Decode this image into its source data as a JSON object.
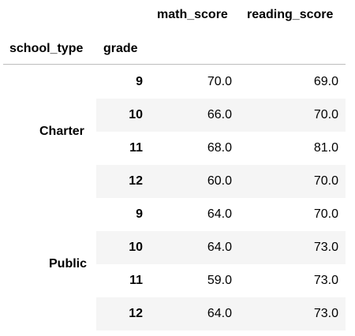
{
  "table": {
    "columns": [
      "math_score",
      "reading_score"
    ],
    "index_names": [
      "school_type",
      "grade"
    ],
    "groups": [
      {
        "school_type": "Charter",
        "rows": [
          {
            "grade": "9",
            "math_score": "70.0",
            "reading_score": "69.0"
          },
          {
            "grade": "10",
            "math_score": "66.0",
            "reading_score": "70.0"
          },
          {
            "grade": "11",
            "math_score": "68.0",
            "reading_score": "81.0"
          },
          {
            "grade": "12",
            "math_score": "60.0",
            "reading_score": "70.0"
          }
        ]
      },
      {
        "school_type": "Public",
        "rows": [
          {
            "grade": "9",
            "math_score": "64.0",
            "reading_score": "70.0"
          },
          {
            "grade": "10",
            "math_score": "64.0",
            "reading_score": "73.0"
          },
          {
            "grade": "11",
            "math_score": "59.0",
            "reading_score": "73.0"
          },
          {
            "grade": "12",
            "math_score": "64.0",
            "reading_score": "73.0"
          }
        ]
      }
    ]
  },
  "colors": {
    "stripe": "#f5f5f5",
    "separator": "#bdbdbd",
    "text": "#000000"
  }
}
